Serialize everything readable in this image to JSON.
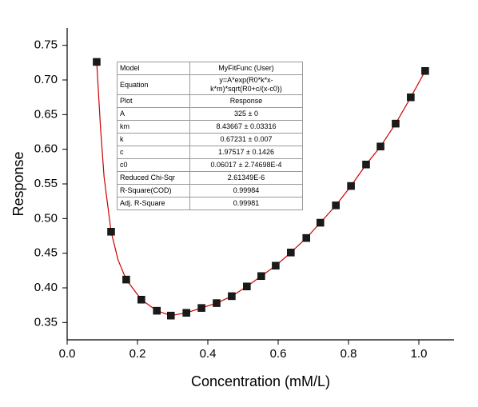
{
  "chart_data": {
    "type": "scatter",
    "xlabel": "Concentration (mM/L)",
    "ylabel": "Response",
    "xlim": [
      0,
      1.1
    ],
    "ylim": [
      0.325,
      0.775
    ],
    "xticks": [
      {
        "value": 0,
        "label": "0.0"
      },
      0.2,
      0.4,
      0.6,
      0.8,
      {
        "value": 1,
        "label": "1.0"
      }
    ],
    "yticks": [
      0.35,
      {
        "value": 0.4,
        "label": "0.40"
      },
      0.45,
      {
        "value": 0.5,
        "label": "0.50"
      },
      0.55,
      {
        "value": 0.6,
        "label": "0.60"
      },
      0.65,
      {
        "value": 0.7,
        "label": "0.70"
      },
      0.75
    ],
    "series": [
      {
        "mode": "line",
        "color": "#cc0000",
        "x": [
          0.084,
          0.095,
          0.105,
          0.125,
          0.145,
          0.168,
          0.211,
          0.255,
          0.295,
          0.339,
          0.382,
          0.425,
          0.468,
          0.511,
          0.552,
          0.593,
          0.636,
          0.68,
          0.72,
          0.764,
          0.807,
          0.85,
          0.891,
          0.934,
          0.977,
          1.018
        ],
        "values": [
          0.726,
          0.63,
          0.56,
          0.481,
          0.44,
          0.412,
          0.383,
          0.367,
          0.36,
          0.364,
          0.371,
          0.378,
          0.388,
          0.402,
          0.417,
          0.432,
          0.451,
          0.472,
          0.494,
          0.519,
          0.547,
          0.578,
          0.604,
          0.637,
          0.675,
          0.713
        ]
      },
      {
        "mode": "markers",
        "color": "#1a1a1a",
        "x": [
          0.084,
          0.125,
          0.168,
          0.211,
          0.255,
          0.295,
          0.339,
          0.382,
          0.425,
          0.468,
          0.511,
          0.552,
          0.593,
          0.636,
          0.68,
          0.72,
          0.764,
          0.807,
          0.85,
          0.891,
          0.934,
          0.977,
          1.018
        ],
        "values": [
          0.726,
          0.481,
          0.412,
          0.383,
          0.367,
          0.36,
          0.364,
          0.371,
          0.378,
          0.388,
          0.402,
          0.417,
          0.432,
          0.451,
          0.472,
          0.494,
          0.519,
          0.547,
          0.578,
          0.604,
          0.637,
          0.675,
          0.713
        ]
      }
    ],
    "table": {
      "rows": [
        [
          "Model",
          "MyFitFunc (User)"
        ],
        [
          "Equation",
          "y=A*exp(R0*k*x-k*m)*sqrt(R0+c/(x-c0))"
        ],
        [
          "Plot",
          "Response"
        ],
        [
          "A",
          "325 ± 0"
        ],
        [
          "km",
          "8.43667 ± 0.03316"
        ],
        [
          "k",
          "0.67231 ± 0.007"
        ],
        [
          "c",
          "1.97517 ± 0.1426"
        ],
        [
          "c0",
          "0.06017 ± 2.74698E-4"
        ],
        [
          "Reduced Chi-Sqr",
          "2.61349E-6"
        ],
        [
          "R-Square(COD)",
          "0.99984"
        ],
        [
          "Adj. R-Square",
          "0.99981"
        ]
      ]
    }
  }
}
